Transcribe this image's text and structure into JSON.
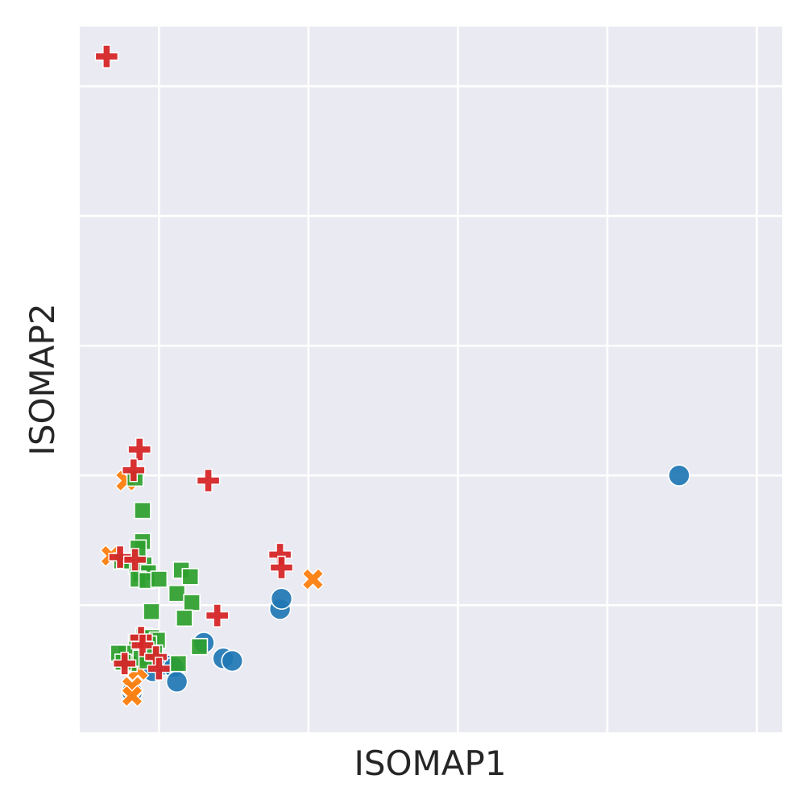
{
  "chart_data": {
    "type": "scatter",
    "xlabel": "ISOMAP1",
    "ylabel": "ISOMAP2",
    "xlim": [
      -0.53,
      4.17
    ],
    "ylim": [
      -0.98,
      4.46
    ],
    "grid": true,
    "background": "#eaeaf2",
    "grid_color": "#ffffff",
    "series": [
      {
        "marker": "circle",
        "color": "#1f77b4",
        "points": [
          [
            -0.18,
            -0.67
          ],
          [
            -0.04,
            -0.51
          ],
          [
            0.04,
            -0.46
          ],
          [
            0.1,
            -0.48
          ],
          [
            0.12,
            -0.59
          ],
          [
            0.3,
            -0.29
          ],
          [
            0.43,
            -0.41
          ],
          [
            0.49,
            -0.43
          ],
          [
            0.81,
            -0.03
          ],
          [
            0.82,
            0.05
          ],
          [
            3.48,
            1.0
          ]
        ]
      },
      {
        "marker": "x",
        "color": "#ff7f0e",
        "points": [
          [
            -0.32,
            0.38
          ],
          [
            -0.22,
            0.96
          ],
          [
            -0.18,
            -0.63
          ],
          [
            -0.18,
            -0.7
          ],
          [
            -0.14,
            -0.5
          ],
          [
            1.03,
            0.2
          ]
        ]
      },
      {
        "marker": "square",
        "color": "#2ca02c",
        "points": [
          [
            -0.16,
            0.98
          ],
          [
            -0.11,
            0.73
          ],
          [
            -0.11,
            0.49
          ],
          [
            -0.14,
            0.44
          ],
          [
            -0.19,
            0.34
          ],
          [
            -0.15,
            0.3
          ],
          [
            -0.13,
            0.27
          ],
          [
            -0.12,
            0.24
          ],
          [
            -0.1,
            0.31
          ],
          [
            -0.07,
            0.25
          ],
          [
            -0.14,
            0.2
          ],
          [
            -0.08,
            0.19
          ],
          [
            -0.25,
            0.34
          ],
          [
            0.0,
            0.2
          ],
          [
            0.15,
            0.27
          ],
          [
            0.21,
            0.22
          ],
          [
            0.12,
            0.09
          ],
          [
            0.22,
            0.02
          ],
          [
            0.17,
            -0.1
          ],
          [
            -0.05,
            -0.05
          ],
          [
            -0.1,
            -0.24
          ],
          [
            -0.05,
            -0.25
          ],
          [
            -0.01,
            -0.27
          ],
          [
            -0.07,
            -0.3
          ],
          [
            -0.15,
            -0.29
          ],
          [
            -0.22,
            -0.37
          ],
          [
            -0.27,
            -0.37
          ],
          [
            -0.2,
            -0.45
          ],
          [
            -0.12,
            -0.41
          ],
          [
            -0.08,
            -0.43
          ],
          [
            -0.03,
            -0.37
          ],
          [
            0.27,
            -0.32
          ],
          [
            0.13,
            -0.45
          ],
          [
            -0.24,
            -0.44
          ]
        ]
      },
      {
        "marker": "plus",
        "color": "#d62728",
        "points": [
          [
            -0.35,
            4.23
          ],
          [
            -0.13,
            1.2
          ],
          [
            -0.17,
            1.04
          ],
          [
            0.33,
            0.96
          ],
          [
            0.81,
            0.39
          ],
          [
            0.82,
            0.29
          ],
          [
            -0.26,
            0.37
          ],
          [
            -0.16,
            0.35
          ],
          [
            0.39,
            -0.08
          ],
          [
            -0.12,
            -0.25
          ],
          [
            -0.11,
            -0.31
          ],
          [
            -0.02,
            -0.4
          ],
          [
            -0.23,
            -0.45
          ],
          [
            0.0,
            -0.49
          ]
        ]
      }
    ]
  }
}
